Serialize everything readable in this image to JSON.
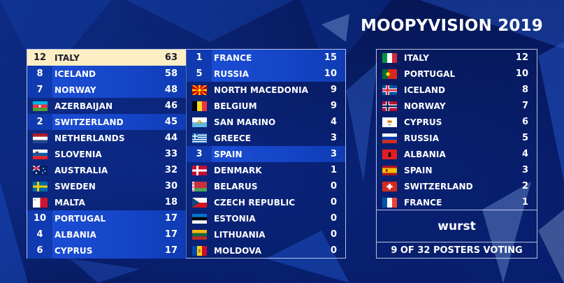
{
  "title": "MOOPYVISION 2019",
  "colors": {
    "highlight": "#1d4fd8",
    "leader": "#fdeec4",
    "background": "#071a5e"
  },
  "scoreboard": {
    "left": [
      {
        "points": "12",
        "name": "ITALY",
        "total": "63",
        "flag": "italy",
        "state": "top"
      },
      {
        "points": "8",
        "name": "ICELAND",
        "total": "58",
        "flag": "iceland",
        "state": "hi"
      },
      {
        "points": "7",
        "name": "NORWAY",
        "total": "48",
        "flag": "norway",
        "state": "hi"
      },
      {
        "points": "",
        "name": "AZERBAIJAN",
        "total": "46",
        "flag": "azerbaijan",
        "state": ""
      },
      {
        "points": "2",
        "name": "SWITZERLAND",
        "total": "45",
        "flag": "switzerland",
        "state": "hi"
      },
      {
        "points": "",
        "name": "NETHERLANDS",
        "total": "44",
        "flag": "netherlands",
        "state": ""
      },
      {
        "points": "",
        "name": "SLOVENIA",
        "total": "33",
        "flag": "slovenia",
        "state": ""
      },
      {
        "points": "",
        "name": "AUSTRALIA",
        "total": "32",
        "flag": "australia",
        "state": ""
      },
      {
        "points": "",
        "name": "SWEDEN",
        "total": "30",
        "flag": "sweden",
        "state": ""
      },
      {
        "points": "",
        "name": "MALTA",
        "total": "18",
        "flag": "malta",
        "state": ""
      },
      {
        "points": "10",
        "name": "PORTUGAL",
        "total": "17",
        "flag": "portugal",
        "state": "hi"
      },
      {
        "points": "4",
        "name": "ALBANIA",
        "total": "17",
        "flag": "albania",
        "state": "hi"
      },
      {
        "points": "6",
        "name": "CYPRUS",
        "total": "17",
        "flag": "cyprus",
        "state": "hi"
      }
    ],
    "right": [
      {
        "points": "1",
        "name": "FRANCE",
        "total": "15",
        "flag": "france",
        "state": "hi"
      },
      {
        "points": "5",
        "name": "RUSSIA",
        "total": "10",
        "flag": "russia",
        "state": "hi"
      },
      {
        "points": "",
        "name": "NORTH MACEDONIA",
        "total": "9",
        "flag": "north-macedonia",
        "state": ""
      },
      {
        "points": "",
        "name": "BELGIUM",
        "total": "9",
        "flag": "belgium",
        "state": ""
      },
      {
        "points": "",
        "name": "SAN MARINO",
        "total": "4",
        "flag": "san-marino",
        "state": ""
      },
      {
        "points": "",
        "name": "GREECE",
        "total": "3",
        "flag": "greece",
        "state": ""
      },
      {
        "points": "3",
        "name": "SPAIN",
        "total": "3",
        "flag": "spain",
        "state": "hi"
      },
      {
        "points": "",
        "name": "DENMARK",
        "total": "1",
        "flag": "denmark",
        "state": ""
      },
      {
        "points": "",
        "name": "BELARUS",
        "total": "0",
        "flag": "belarus",
        "state": ""
      },
      {
        "points": "",
        "name": "CZECH REPUBLIC",
        "total": "0",
        "flag": "czech-republic",
        "state": ""
      },
      {
        "points": "",
        "name": "ESTONIA",
        "total": "0",
        "flag": "estonia",
        "state": ""
      },
      {
        "points": "",
        "name": "LITHUANIA",
        "total": "0",
        "flag": "lithuania",
        "state": ""
      },
      {
        "points": "",
        "name": "MOLDOVA",
        "total": "0",
        "flag": "moldova",
        "state": ""
      }
    ]
  },
  "votes": {
    "items": [
      {
        "name": "ITALY",
        "points": "12",
        "flag": "italy"
      },
      {
        "name": "PORTUGAL",
        "points": "10",
        "flag": "portugal"
      },
      {
        "name": "ICELAND",
        "points": "8",
        "flag": "iceland"
      },
      {
        "name": "NORWAY",
        "points": "7",
        "flag": "norway"
      },
      {
        "name": "CYPRUS",
        "points": "6",
        "flag": "cyprus"
      },
      {
        "name": "RUSSIA",
        "points": "5",
        "flag": "russia"
      },
      {
        "name": "ALBANIA",
        "points": "4",
        "flag": "albania"
      },
      {
        "name": "SPAIN",
        "points": "3",
        "flag": "spain"
      },
      {
        "name": "SWITZERLAND",
        "points": "2",
        "flag": "switzerland"
      },
      {
        "name": "FRANCE",
        "points": "1",
        "flag": "france"
      }
    ],
    "voter": "wurst",
    "voting_status": "9 OF 32 POSTERS VOTING"
  }
}
